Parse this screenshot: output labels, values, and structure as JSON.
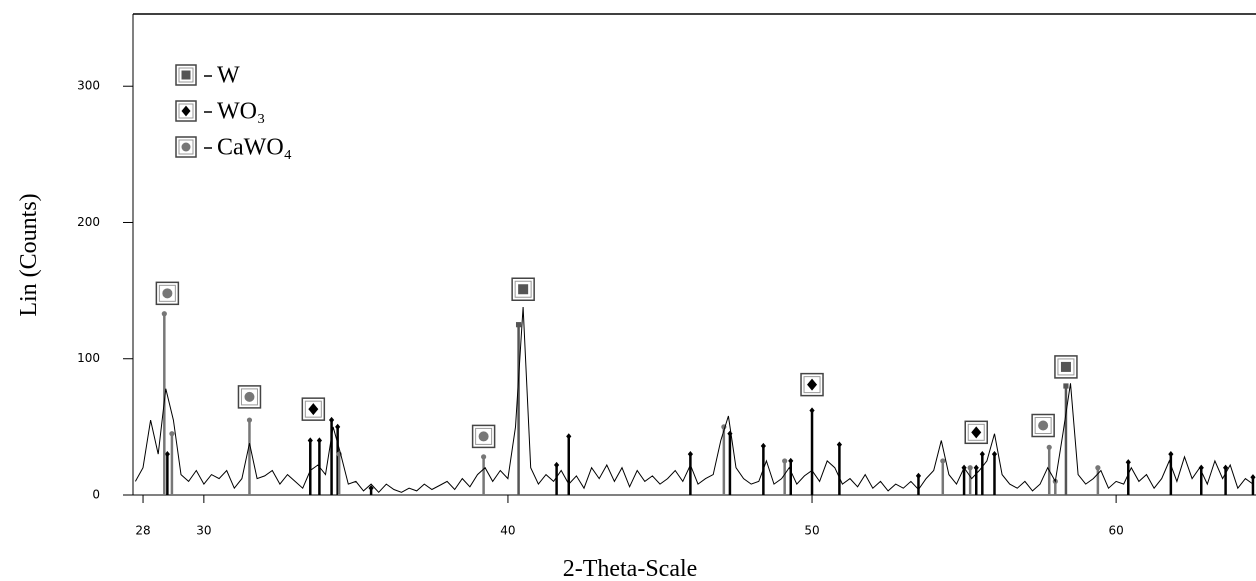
{
  "chart_data": {
    "type": "line",
    "xlabel": "2-Theta-Scale",
    "ylabel": "Lin (Counts)",
    "xlim": [
      27.67,
      64.6
    ],
    "ylim": [
      0,
      353
    ],
    "xticks": [
      28,
      30,
      40,
      50,
      60
    ],
    "yticks": [
      0,
      100,
      200,
      300
    ],
    "trace": {
      "color": "#000000",
      "x": [
        27.75,
        28,
        28.25,
        28.5,
        28.75,
        29,
        29.25,
        29.5,
        29.75,
        30,
        30.25,
        30.5,
        30.75,
        31,
        31.25,
        31.5,
        31.75,
        32,
        32.25,
        32.5,
        32.75,
        33,
        33.25,
        33.5,
        33.75,
        34,
        34.25,
        34.5,
        34.75,
        35,
        35.25,
        35.5,
        35.75,
        36,
        36.25,
        36.5,
        36.75,
        37,
        37.25,
        37.5,
        37.75,
        38,
        38.25,
        38.5,
        38.75,
        39,
        39.25,
        39.5,
        39.75,
        40,
        40.25,
        40.5,
        40.75,
        41,
        41.25,
        41.5,
        41.75,
        42,
        42.25,
        42.5,
        42.75,
        43,
        43.25,
        43.5,
        43.75,
        44,
        44.25,
        44.5,
        44.75,
        45,
        45.25,
        45.5,
        45.75,
        46,
        46.25,
        46.5,
        46.75,
        47,
        47.25,
        47.5,
        47.75,
        48,
        48.25,
        48.5,
        48.75,
        49,
        49.25,
        49.5,
        49.75,
        50,
        50.25,
        50.5,
        50.75,
        51,
        51.25,
        51.5,
        51.75,
        52,
        52.25,
        52.5,
        52.75,
        53,
        53.25,
        53.5,
        53.75,
        54,
        54.25,
        54.5,
        54.75,
        55,
        55.25,
        55.5,
        55.75,
        56,
        56.25,
        56.5,
        56.75,
        57,
        57.25,
        57.5,
        57.75,
        58,
        58.25,
        58.5,
        58.75,
        59,
        59.25,
        59.5,
        59.75,
        60,
        60.25,
        60.5,
        60.75,
        61,
        61.25,
        61.5,
        61.75,
        62,
        62.25,
        62.5,
        62.75,
        63,
        63.25,
        63.5,
        63.75,
        64,
        64.25,
        64.5
      ],
      "values": [
        10,
        20,
        55,
        30,
        78,
        55,
        15,
        10,
        18,
        8,
        15,
        12,
        18,
        5,
        12,
        38,
        12,
        14,
        18,
        8,
        15,
        10,
        5,
        18,
        22,
        15,
        50,
        30,
        8,
        10,
        3,
        8,
        2,
        8,
        4,
        2,
        5,
        3,
        8,
        4,
        7,
        10,
        4,
        12,
        6,
        15,
        20,
        10,
        18,
        12,
        50,
        138,
        20,
        8,
        15,
        10,
        18,
        8,
        14,
        5,
        20,
        12,
        22,
        10,
        20,
        6,
        18,
        10,
        14,
        8,
        12,
        18,
        10,
        22,
        8,
        12,
        15,
        40,
        58,
        20,
        12,
        8,
        10,
        25,
        8,
        12,
        20,
        8,
        14,
        18,
        10,
        25,
        20,
        8,
        12,
        6,
        15,
        5,
        10,
        3,
        8,
        5,
        10,
        4,
        12,
        18,
        40,
        15,
        8,
        20,
        12,
        18,
        25,
        45,
        15,
        8,
        5,
        10,
        3,
        8,
        20,
        10,
        45,
        82,
        15,
        8,
        12,
        18,
        5,
        10,
        8,
        20,
        10,
        15,
        5,
        12,
        25,
        10,
        28,
        12,
        20,
        8,
        25,
        12,
        22,
        5,
        12,
        8
      ]
    },
    "series": [
      {
        "name": "W",
        "marker": "square",
        "color": "#555555",
        "x": [
          40.35,
          58.35
        ],
        "values": [
          125,
          80
        ]
      },
      {
        "name": "WO₃",
        "marker": "diamond",
        "color": "#000000",
        "x": [
          28.8,
          33.5,
          33.8,
          34.2,
          34.4,
          35.5,
          41.6,
          42.0,
          46.0,
          47.3,
          48.4,
          49.3,
          50.0,
          50.9,
          53.5,
          55.0,
          55.4,
          55.6,
          56.0,
          60.4,
          61.8,
          62.8,
          63.6,
          64.5
        ],
        "values": [
          30,
          40,
          40,
          55,
          50,
          5,
          22,
          43,
          30,
          45,
          36,
          25,
          62,
          37,
          14,
          20,
          20,
          30,
          30,
          24,
          30,
          20,
          20,
          13
        ]
      },
      {
        "name": "CaWO₄",
        "marker": "circle",
        "color": "#777777",
        "x": [
          28.7,
          28.95,
          31.5,
          34.45,
          39.2,
          47.1,
          49.1,
          54.3,
          55.2,
          57.8,
          58.0,
          59.4
        ],
        "values": [
          133,
          45,
          55,
          30,
          28,
          50,
          25,
          25,
          20,
          35,
          10,
          20
        ]
      }
    ],
    "annotations": [
      {
        "series": 2,
        "x": 28.8,
        "y": 148
      },
      {
        "series": 2,
        "x": 31.5,
        "y": 72
      },
      {
        "series": 1,
        "x": 33.6,
        "y": 63
      },
      {
        "series": 2,
        "x": 39.2,
        "y": 43
      },
      {
        "series": 0,
        "x": 40.5,
        "y": 151
      },
      {
        "series": 1,
        "x": 50.0,
        "y": 81
      },
      {
        "series": 1,
        "x": 55.4,
        "y": 46
      },
      {
        "series": 2,
        "x": 57.6,
        "y": 51
      },
      {
        "series": 0,
        "x": 58.35,
        "y": 94
      }
    ]
  }
}
